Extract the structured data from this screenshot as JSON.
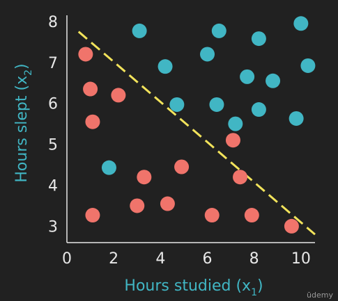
{
  "chart_data": {
    "type": "scatter",
    "xlabel": "Hours studied (x",
    "xlabel_sub": "1",
    "xlabel_close": ")",
    "ylabel": "Hours slept (x",
    "ylabel_sub": "2",
    "ylabel_close": ")",
    "xlim": [
      0,
      10.6
    ],
    "ylim": [
      2.6,
      8.15
    ],
    "xticks": [
      "0",
      "2",
      "4",
      "6",
      "8",
      "10"
    ],
    "yticks": [
      "3",
      "4",
      "5",
      "6",
      "7",
      "8"
    ],
    "grid": false,
    "series": [
      {
        "color": "#41b6c4",
        "points": [
          [
            3.1,
            7.77
          ],
          [
            6.5,
            7.77
          ],
          [
            8.2,
            7.58
          ],
          [
            10.0,
            7.95
          ],
          [
            6.0,
            7.2
          ],
          [
            4.2,
            6.9
          ],
          [
            10.3,
            6.92
          ],
          [
            7.7,
            6.65
          ],
          [
            8.8,
            6.55
          ],
          [
            4.7,
            5.97
          ],
          [
            6.4,
            5.97
          ],
          [
            8.2,
            5.85
          ],
          [
            9.8,
            5.63
          ],
          [
            7.2,
            5.5
          ],
          [
            1.8,
            4.43
          ]
        ]
      },
      {
        "color": "#f0746b",
        "points": [
          [
            0.8,
            7.2
          ],
          [
            1.0,
            6.35
          ],
          [
            2.2,
            6.2
          ],
          [
            1.1,
            5.55
          ],
          [
            7.1,
            5.1
          ],
          [
            4.9,
            4.45
          ],
          [
            3.3,
            4.2
          ],
          [
            7.4,
            4.2
          ],
          [
            3.0,
            3.5
          ],
          [
            4.3,
            3.55
          ],
          [
            1.1,
            3.27
          ],
          [
            6.2,
            3.27
          ],
          [
            7.9,
            3.27
          ],
          [
            9.6,
            3.0
          ]
        ]
      }
    ],
    "boundary": {
      "color": "#f2e35b",
      "points": [
        [
          0.5,
          7.75
        ],
        [
          10.6,
          2.8
        ]
      ]
    },
    "watermark": "ūdemy"
  }
}
